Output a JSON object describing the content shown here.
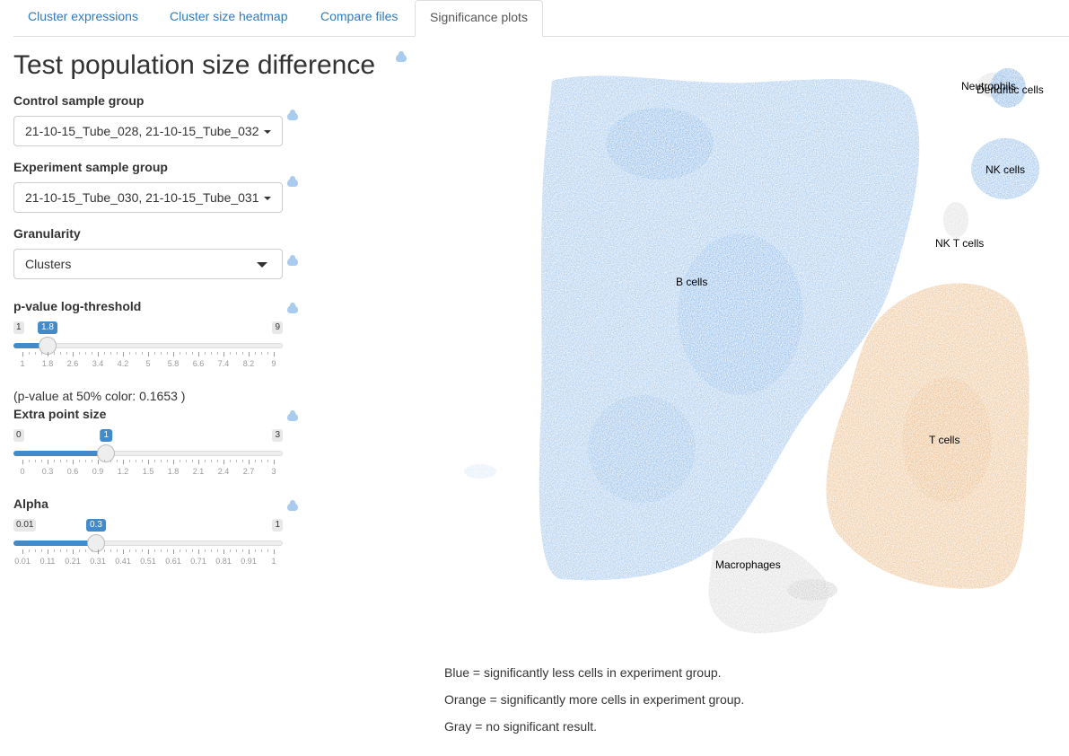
{
  "tabs": [
    {
      "label": "Cluster expressions"
    },
    {
      "label": "Cluster size heatmap"
    },
    {
      "label": "Compare files"
    },
    {
      "label": "Significance plots"
    }
  ],
  "title": "Test population size difference",
  "controls": {
    "control_group": {
      "label": "Control sample group",
      "value": "21-10-15_Tube_028, 21-10-15_Tube_032"
    },
    "experiment_group": {
      "label": "Experiment sample group",
      "value": "21-10-15_Tube_030, 21-10-15_Tube_031"
    },
    "granularity": {
      "label": "Granularity",
      "value": "Clusters"
    },
    "pvalue_slider": {
      "label": "p-value log-threshold",
      "min": "1",
      "max": "9",
      "value": "1.8",
      "fraction": 0.1,
      "ticks": [
        "1",
        "1.8",
        "2.6",
        "3.4",
        "4.2",
        "5",
        "5.8",
        "6.6",
        "7.4",
        "8.2",
        "9"
      ]
    },
    "pvalue_note": "(p-value at 50% color: 0.1653 )",
    "point_size_slider": {
      "label": "Extra point size",
      "min": "0",
      "max": "3",
      "value": "1",
      "fraction": 0.3333,
      "ticks": [
        "0",
        "0.3",
        "0.6",
        "0.9",
        "1.2",
        "1.5",
        "1.8",
        "2.1",
        "2.4",
        "2.7",
        "3"
      ]
    },
    "alpha_slider": {
      "label": "Alpha",
      "min": "0.01",
      "max": "1",
      "value": "0.3",
      "fraction": 0.2929,
      "ticks": [
        "0.01",
        "0.11",
        "0.21",
        "0.31",
        "0.41",
        "0.51",
        "0.61",
        "0.71",
        "0.81",
        "0.91",
        "1"
      ]
    }
  },
  "plot": {
    "colors": {
      "less": "#4a90d9",
      "more": "#e09a4f",
      "none": "#bdbdbd"
    },
    "cluster_labels": {
      "neutrophils": "Neutrophils",
      "dendritic": "Dendritic cells",
      "nk": "NK cells",
      "nkt": "NK T cells",
      "b": "B cells",
      "t": "T cells",
      "macro": "Macrophages"
    }
  },
  "legend": [
    "Blue = significantly less cells in experiment group.",
    "Orange = significantly more cells in experiment group.",
    "Gray = no significant result."
  ]
}
